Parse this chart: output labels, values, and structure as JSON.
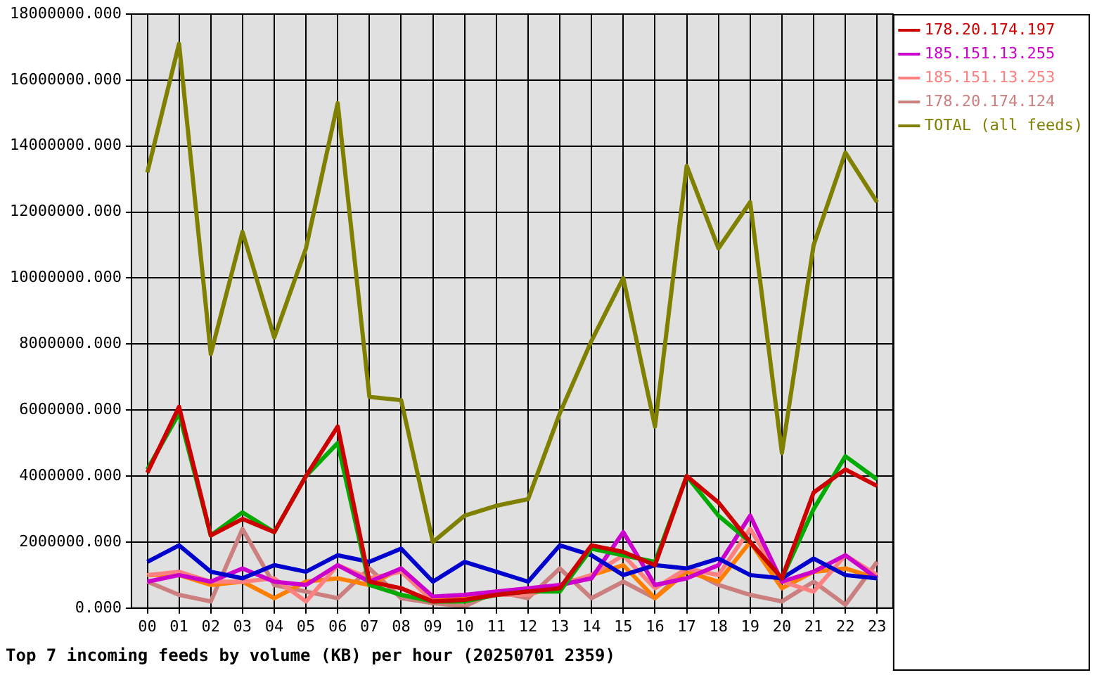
{
  "chart_data": {
    "type": "line",
    "title": "Top 7 incoming feeds by volume (KB) per hour (20250701 2359)",
    "categories": [
      "00",
      "01",
      "02",
      "03",
      "04",
      "05",
      "06",
      "07",
      "08",
      "09",
      "10",
      "11",
      "12",
      "13",
      "14",
      "15",
      "16",
      "17",
      "18",
      "19",
      "20",
      "21",
      "22",
      "23"
    ],
    "ylim": [
      0,
      18000000
    ],
    "yticks": [
      {
        "value": 0,
        "label": "0.000"
      },
      {
        "value": 2000000,
        "label": "2000000.000"
      },
      {
        "value": 4000000,
        "label": "4000000.000"
      },
      {
        "value": 6000000,
        "label": "6000000.000"
      },
      {
        "value": 8000000,
        "label": "8000000.000"
      },
      {
        "value": 10000000,
        "label": "10000000.000"
      },
      {
        "value": 12000000,
        "label": "12000000.000"
      },
      {
        "value": 14000000,
        "label": "14000000.000"
      },
      {
        "value": 16000000,
        "label": "16000000.000"
      },
      {
        "value": 18000000,
        "label": "18000000.000"
      }
    ],
    "grid": true,
    "legend": "right",
    "marker": "none",
    "line_style": "solid",
    "series": [
      {
        "name": "178.20.174.197",
        "color": "#cc0000",
        "values": [
          4100000,
          6100000,
          2200000,
          2700000,
          2300000,
          4000000,
          5500000,
          800000,
          600000,
          200000,
          250000,
          400000,
          500000,
          600000,
          1900000,
          1700000,
          1300000,
          4000000,
          3200000,
          2000000,
          900000,
          3500000,
          4200000,
          3700000
        ]
      },
      {
        "color": "#00aa00",
        "values": [
          4200000,
          5900000,
          2200000,
          2900000,
          2300000,
          4000000,
          5000000,
          700000,
          400000,
          200000,
          200000,
          400000,
          500000,
          500000,
          1800000,
          1600000,
          1400000,
          4000000,
          2800000,
          2000000,
          900000,
          3000000,
          4600000,
          3900000
        ]
      },
      {
        "color": "#0000cc",
        "values": [
          1400000,
          1900000,
          1100000,
          900000,
          1300000,
          1100000,
          1600000,
          1400000,
          1800000,
          800000,
          1400000,
          1100000,
          800000,
          1900000,
          1600000,
          1000000,
          1300000,
          1200000,
          1500000,
          1000000,
          900000,
          1500000,
          1000000,
          900000
        ]
      },
      {
        "name": "185.151.13.255",
        "color": "#cc00cc",
        "values": [
          800000,
          1000000,
          800000,
          1200000,
          800000,
          700000,
          1300000,
          800000,
          1200000,
          350000,
          400000,
          500000,
          600000,
          700000,
          900000,
          2300000,
          700000,
          900000,
          1300000,
          2800000,
          800000,
          1100000,
          1600000,
          900000
        ]
      },
      {
        "name": "185.151.13.253",
        "color": "#ff8080",
        "values": [
          1000000,
          1100000,
          800000,
          800000,
          900000,
          200000,
          1300000,
          900000,
          1100000,
          200000,
          200000,
          400000,
          400000,
          700000,
          1000000,
          1600000,
          600000,
          1200000,
          1000000,
          2400000,
          800000,
          500000,
          1600000,
          1000000
        ]
      },
      {
        "color": "#ff8000",
        "values": [
          1000000,
          1000000,
          700000,
          800000,
          300000,
          800000,
          900000,
          700000,
          1200000,
          300000,
          300000,
          400000,
          400000,
          700000,
          1000000,
          1300000,
          300000,
          1100000,
          800000,
          2000000,
          600000,
          1100000,
          1200000,
          900000
        ]
      },
      {
        "name": "178.20.174.124",
        "color": "#cc7f7f",
        "values": [
          800000,
          400000,
          200000,
          2400000,
          700000,
          500000,
          300000,
          1200000,
          300000,
          150000,
          50000,
          500000,
          300000,
          1200000,
          300000,
          800000,
          300000,
          1200000,
          700000,
          400000,
          200000,
          800000,
          100000,
          1400000
        ]
      },
      {
        "name": "TOTAL (all feeds)",
        "color": "#808000",
        "values": [
          13200000,
          17100000,
          7700000,
          11400000,
          8200000,
          10900000,
          15300000,
          6400000,
          6300000,
          2000000,
          2800000,
          3100000,
          3300000,
          5900000,
          8100000,
          10000000,
          5500000,
          13400000,
          10900000,
          12300000,
          4700000,
          11000000,
          13800000,
          12300000
        ]
      }
    ]
  }
}
